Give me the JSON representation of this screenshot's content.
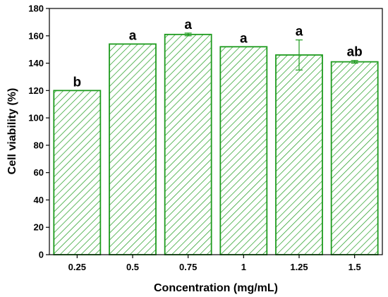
{
  "chart_data": {
    "type": "bar",
    "categories": [
      "0.25",
      "0.5",
      "0.75",
      "1",
      "1.25",
      "1.5"
    ],
    "values": [
      120,
      154,
      161,
      152,
      146,
      141
    ],
    "error": [
      0,
      0,
      1,
      0,
      11,
      1
    ],
    "significance": [
      "b",
      "a",
      "a",
      "a",
      "a",
      "ab"
    ],
    "xlabel": "Concentration (mg/mL)",
    "ylabel": "Cell viability (%)",
    "ylim": [
      0,
      180
    ],
    "yticks": [
      0,
      20,
      40,
      60,
      80,
      100,
      120,
      140,
      160,
      180
    ],
    "grid": false,
    "legend": "none",
    "bar_color": "#1e9b1e",
    "bar_fill": "hatched"
  }
}
